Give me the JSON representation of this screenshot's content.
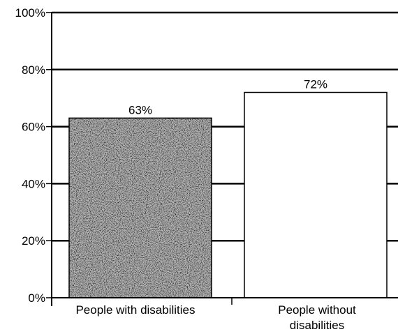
{
  "chart_data": {
    "type": "bar",
    "categories": [
      "People with disabilities",
      "People without disabilities"
    ],
    "category_label_lines": [
      [
        "People with disabilities"
      ],
      [
        "People without",
        "disabilities"
      ]
    ],
    "values": [
      63,
      72
    ],
    "data_labels": [
      "63%",
      "72%"
    ],
    "title": "",
    "xlabel": "",
    "ylabel": "",
    "ylim": [
      0,
      100
    ],
    "yticks": [
      0,
      20,
      40,
      60,
      80,
      100
    ],
    "ytick_labels": [
      "0%",
      "20%",
      "40%",
      "60%",
      "80%",
      "100%"
    ],
    "grid": true,
    "bar_styles": [
      "dark-stipple",
      "white"
    ],
    "colors": {
      "bar_dark": "#555555",
      "bar_light": "#ffffff",
      "axis": "#000000",
      "grid": "#000000"
    }
  }
}
